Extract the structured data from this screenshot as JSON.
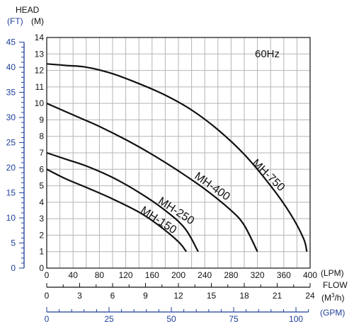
{
  "chart_data": {
    "type": "line",
    "title": "",
    "annotation": "60Hz",
    "ylabel_title": "HEAD",
    "ylabel_ft": "(FT)",
    "ylabel_m": "(M)",
    "xlabel_title": "FLOW",
    "unit_lpm": "(LPM)",
    "unit_m3h": "(M",
    "unit_m3h_sup": "3",
    "unit_m3h_end": "/h)",
    "unit_gpm": "(GPM)",
    "xlim_lpm": [
      0,
      400
    ],
    "ylim_m": [
      0,
      14
    ],
    "grid": true,
    "x_ticks_lpm": [
      "0",
      "40",
      "80",
      "120",
      "160",
      "200",
      "240",
      "280",
      "320",
      "360",
      "400"
    ],
    "x_ticks_m3h": [
      "0",
      "3",
      "6",
      "9",
      "12",
      "15",
      "18",
      "21",
      "24"
    ],
    "x_ticks_gpm": [
      "0",
      "25",
      "50",
      "75",
      "100"
    ],
    "y_ticks_m": [
      "0",
      "1",
      "2",
      "3",
      "4",
      "5",
      "6",
      "7",
      "8",
      "9",
      "10",
      "11",
      "12",
      "13",
      "14"
    ],
    "y_ticks_ft": [
      "0",
      "5",
      "10",
      "15",
      "20",
      "25",
      "30",
      "35",
      "40",
      "45"
    ],
    "series": [
      {
        "name": "MH-750",
        "x": [
          0,
          30,
          60,
          100,
          140,
          180,
          220,
          260,
          300,
          340,
          370,
          390,
          395
        ],
        "y": [
          12.4,
          12.3,
          12.2,
          11.8,
          11.2,
          10.5,
          9.6,
          8.4,
          6.9,
          5.0,
          3.3,
          1.8,
          1.0
        ]
      },
      {
        "name": "MH-400",
        "x": [
          0,
          40,
          80,
          120,
          160,
          200,
          240,
          280,
          300,
          320
        ],
        "y": [
          10.0,
          9.3,
          8.6,
          7.8,
          6.9,
          5.9,
          4.8,
          3.5,
          2.6,
          1.0
        ]
      },
      {
        "name": "MH-250",
        "x": [
          0,
          30,
          60,
          100,
          140,
          180,
          210,
          230
        ],
        "y": [
          7.0,
          6.6,
          6.2,
          5.5,
          4.6,
          3.5,
          2.4,
          1.0
        ]
      },
      {
        "name": "MH-150",
        "x": [
          0,
          30,
          60,
          100,
          140,
          170,
          200,
          212
        ],
        "y": [
          6.0,
          5.4,
          4.9,
          4.2,
          3.4,
          2.6,
          1.6,
          1.0
        ]
      }
    ]
  }
}
